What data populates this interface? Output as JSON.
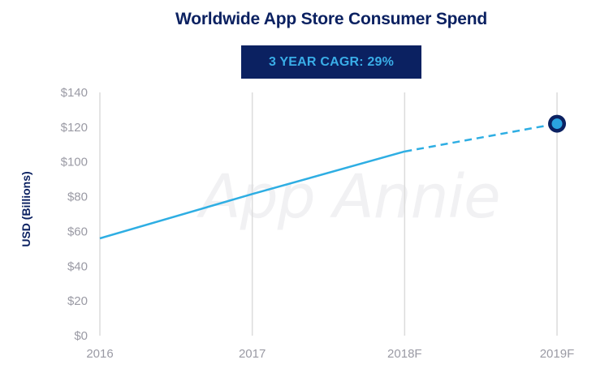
{
  "chart_data": {
    "type": "line",
    "title": "Worldwide App Store Consumer Spend",
    "badge": "3 YEAR CAGR: 29%",
    "ylabel": "USD (Billions)",
    "watermark": "App Annie",
    "categories": [
      "2016",
      "2017",
      "2018F",
      "2019F"
    ],
    "ylim": [
      0,
      140
    ],
    "yticks": [
      {
        "value": 0,
        "label": "$0"
      },
      {
        "value": 20,
        "label": "$20"
      },
      {
        "value": 40,
        "label": "$40"
      },
      {
        "value": 60,
        "label": "$60"
      },
      {
        "value": 80,
        "label": "$80"
      },
      {
        "value": 100,
        "label": "$100"
      },
      {
        "value": 120,
        "label": "$120"
      },
      {
        "value": 140,
        "label": "$140"
      }
    ],
    "series": [
      {
        "values": [
          56,
          81.5,
          106,
          122
        ]
      }
    ],
    "solid_until_index": 2,
    "line_color": "#2eaee3",
    "marker_color": "#2aa4e0",
    "marker_ring_color": "#0b2161",
    "grid_color": "#dcdcdc",
    "grid": true
  }
}
